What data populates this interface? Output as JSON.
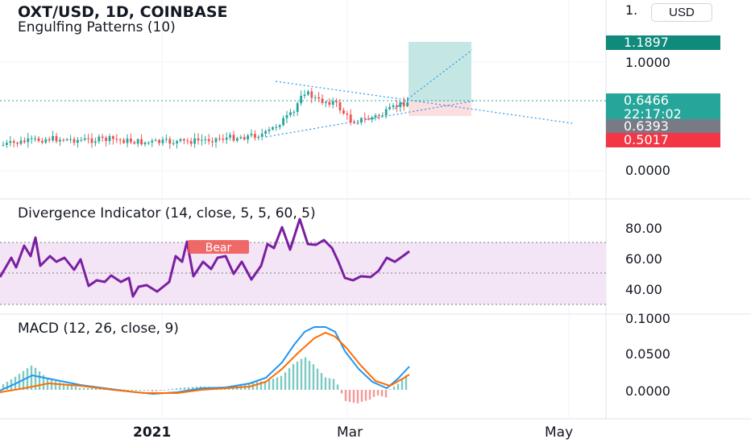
{
  "header": {
    "symbol_title": "OXT/USD, 1D, COINBASE",
    "indicator": "Engulfing Patterns (10)",
    "currency_button": "USD"
  },
  "axis": {
    "main_ticks": [
      "1.",
      "1.0000",
      "0.0000"
    ],
    "div_ticks": [
      "80.00",
      "60.00",
      "40.00"
    ],
    "macd_ticks": [
      "0.1000",
      "0.0500",
      "0.0000"
    ],
    "x_ticks": [
      "2021",
      "Mar",
      "May"
    ]
  },
  "price_tags": {
    "target": "1.1897",
    "current": "0.6466",
    "countdown": "22:17:02",
    "entry": "0.6393",
    "stop": "0.5017",
    "colors": {
      "target": "#0f8a7b",
      "current": "#26a69a",
      "entry": "#787b86",
      "stop": "#f23645"
    }
  },
  "divergence": {
    "title": "Divergence Indicator (14, close, 5, 5, 60, 5)",
    "bear_label": "Bear"
  },
  "macd": {
    "title": "MACD (12, 26, close, 9)"
  },
  "colors": {
    "up": "#26a69a",
    "down": "#ef5350",
    "rsi": "#7b1fa2",
    "macd": "#2196f3",
    "signal": "#ff6d00",
    "band_fill": "#f3e5f5",
    "target_zone": "#b2dfdb",
    "stop_zone": "#fcdede"
  }
}
